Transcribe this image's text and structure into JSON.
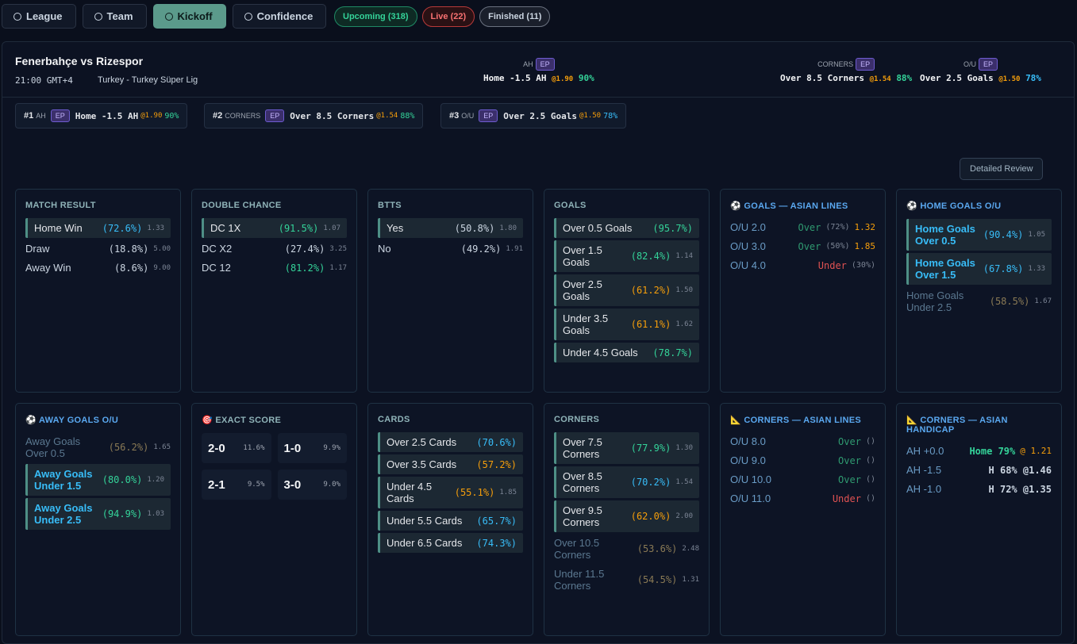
{
  "tabs": [
    {
      "label": "League",
      "active": false
    },
    {
      "label": "Team",
      "active": false
    },
    {
      "label": "Kickoff",
      "active": true
    },
    {
      "label": "Confidence",
      "active": false
    }
  ],
  "filters": [
    {
      "label": "Upcoming (318)",
      "tone": "green"
    },
    {
      "label": "Live (22)",
      "tone": "red"
    },
    {
      "label": "Finished (11)",
      "tone": "gray"
    }
  ],
  "match": {
    "title": "Fenerbahçe vs Rizespor",
    "time": "21:00 GMT+4",
    "league": "Turkey - Turkey Süper Lig"
  },
  "header_picks": [
    {
      "market": "AH",
      "badge": "EP",
      "pick": "Home -1.5 AH",
      "odds": "@1.90",
      "conf": "90%",
      "tone": "green"
    },
    {
      "market": "CORNERS",
      "badge": "EP",
      "pick": "Over 8.5 Corners",
      "odds": "@1.54",
      "conf": "88%",
      "tone": "green"
    },
    {
      "market": "O/U",
      "badge": "EP",
      "pick": "Over 2.5 Goals",
      "odds": "@1.50",
      "conf": "78%",
      "tone": "blue"
    }
  ],
  "top_picks": [
    {
      "rank": "#1",
      "market": "AH",
      "badge": "EP",
      "pick": "Home -1.5 AH",
      "odds": "@1.90",
      "conf": "90%",
      "tone": "green"
    },
    {
      "rank": "#2",
      "market": "CORNERS",
      "badge": "EP",
      "pick": "Over 8.5 Corners",
      "odds": "@1.54",
      "conf": "88%",
      "tone": "green"
    },
    {
      "rank": "#3",
      "market": "O/U",
      "badge": "EP",
      "pick": "Over 2.5 Goals",
      "odds": "@1.50",
      "conf": "78%",
      "tone": "blue"
    }
  ],
  "review_button": "Detailed Review",
  "cards": [
    {
      "title": "MATCH RESULT",
      "rows": [
        {
          "label": "Home Win",
          "pct": "(72.6%)",
          "odds": "1.33",
          "tone": "blue",
          "hl": true
        },
        {
          "label": "Draw",
          "pct": "(18.8%)",
          "odds": "5.00",
          "tone": "gray",
          "hl": false
        },
        {
          "label": "Away Win",
          "pct": "(8.6%)",
          "odds": "9.00",
          "tone": "gray",
          "hl": false
        }
      ]
    },
    {
      "title": "DOUBLE CHANCE",
      "rows": [
        {
          "label": "DC 1X",
          "pct": "(91.5%)",
          "odds": "1.07",
          "tone": "green",
          "hl": true
        },
        {
          "label": "DC X2",
          "pct": "(27.4%)",
          "odds": "3.25",
          "tone": "gray",
          "hl": false
        },
        {
          "label": "DC 12",
          "pct": "(81.2%)",
          "odds": "1.17",
          "tone": "green",
          "hl": false
        }
      ]
    },
    {
      "title": "BTTS",
      "rows": [
        {
          "label": "Yes",
          "pct": "(50.8%)",
          "odds": "1.80",
          "tone": "gray",
          "hl": true
        },
        {
          "label": "No",
          "pct": "(49.2%)",
          "odds": "1.91",
          "tone": "gray",
          "hl": false
        }
      ]
    },
    {
      "title": "GOALS",
      "rows": [
        {
          "label": "Over 0.5 Goals",
          "pct": "(95.7%)",
          "tone": "green",
          "hl": true
        },
        {
          "label": "Over 1.5 Goals",
          "pct": "(82.4%)",
          "odds": "1.14",
          "tone": "green",
          "hl": true
        },
        {
          "label": "Over 2.5 Goals",
          "pct": "(61.2%)",
          "odds": "1.50",
          "tone": "orange",
          "hl": true
        },
        {
          "label": "Under 3.5 Goals",
          "pct": "(61.1%)",
          "odds": "1.62",
          "tone": "orange",
          "hl": true
        },
        {
          "label": "Under 4.5 Goals",
          "pct": "(78.7%)",
          "tone": "green",
          "hl": true
        }
      ]
    },
    {
      "title": "GOALS — ASIAN LINES",
      "icon": "⚽",
      "accent": true,
      "rows": [
        {
          "label": "O/U 2.0",
          "pick": "Over",
          "pct": "(72%)",
          "odds": "1.32",
          "tone": "over"
        },
        {
          "label": "O/U 3.0",
          "pick": "Over",
          "pct": "(50%)",
          "odds": "1.85",
          "tone": "over"
        },
        {
          "label": "O/U 4.0",
          "pick": "Under",
          "pct": "(30%)",
          "tone": "under"
        }
      ]
    },
    {
      "title": "HOME GOALS O/U",
      "icon": "⚽",
      "accent": true,
      "rows": [
        {
          "label": "Home Goals Over 0.5",
          "pct": "(90.4%)",
          "odds": "1.05",
          "tone": "blue",
          "hl": true
        },
        {
          "label": "Home Goals Over 1.5",
          "pct": "(67.8%)",
          "odds": "1.33",
          "tone": "blue",
          "hl": true
        },
        {
          "label": "Home Goals Under 2.5",
          "pct": "(58.5%)",
          "odds": "1.67",
          "tone": "dim",
          "hl": false
        }
      ]
    },
    {
      "title": "AWAY GOALS O/U",
      "icon": "⚽",
      "accent": true,
      "rows": [
        {
          "label": "Away Goals Over 0.5",
          "pct": "(56.2%)",
          "odds": "1.65",
          "tone": "dim",
          "hl": false
        },
        {
          "label": "Away Goals Under 1.5",
          "pct": "(80.0%)",
          "odds": "1.20",
          "tone": "green",
          "hl": true
        },
        {
          "label": "Away Goals Under 2.5",
          "pct": "(94.9%)",
          "odds": "1.03",
          "tone": "green",
          "hl": true
        }
      ]
    },
    {
      "title": "EXACT SCORE",
      "icon": "🎯",
      "accent": false,
      "scores": [
        {
          "score": "2-0",
          "pct": "11.6%"
        },
        {
          "score": "1-0",
          "pct": "9.9%"
        },
        {
          "score": "2-1",
          "pct": "9.5%"
        },
        {
          "score": "3-0",
          "pct": "9.0%"
        }
      ]
    },
    {
      "title": "CARDS",
      "rows": [
        {
          "label": "Over 2.5 Cards",
          "pct": "(70.6%)",
          "tone": "blue",
          "hl": true
        },
        {
          "label": "Over 3.5 Cards",
          "pct": "(57.2%)",
          "tone": "orange",
          "hl": true
        },
        {
          "label": "Under 4.5 Cards",
          "pct": "(55.1%)",
          "odds": "1.85",
          "tone": "orange",
          "hl": true
        },
        {
          "label": "Under 5.5 Cards",
          "pct": "(65.7%)",
          "tone": "blue",
          "hl": true
        },
        {
          "label": "Under 6.5 Cards",
          "pct": "(74.3%)",
          "tone": "blue",
          "hl": true
        }
      ]
    },
    {
      "title": "CORNERS",
      "rows": [
        {
          "label": "Over 7.5 Corners",
          "pct": "(77.9%)",
          "odds": "1.30",
          "tone": "green",
          "hl": true
        },
        {
          "label": "Over 8.5 Corners",
          "pct": "(70.2%)",
          "odds": "1.54",
          "tone": "blue",
          "hl": true
        },
        {
          "label": "Over 9.5 Corners",
          "pct": "(62.0%)",
          "odds": "2.00",
          "tone": "orange",
          "hl": true
        },
        {
          "label": "Over 10.5 Corners",
          "pct": "(53.6%)",
          "odds": "2.48",
          "tone": "dim",
          "hl": false
        },
        {
          "label": "Under 11.5 Corners",
          "pct": "(54.5%)",
          "odds": "1.31",
          "tone": "dim",
          "hl": false
        }
      ]
    },
    {
      "title": "CORNERS — ASIAN LINES",
      "icon": "📐",
      "accent": true,
      "rows": [
        {
          "label": "O/U 8.0",
          "pick": "Over",
          "pct": "()",
          "tone": "over"
        },
        {
          "label": "O/U 9.0",
          "pick": "Over",
          "pct": "()",
          "tone": "over"
        },
        {
          "label": "O/U 10.0",
          "pick": "Over",
          "pct": "()",
          "tone": "over"
        },
        {
          "label": "O/U 11.0",
          "pick": "Under",
          "pct": "()",
          "tone": "under"
        }
      ]
    },
    {
      "title": "CORNERS — ASIAN HANDICAP",
      "icon": "📐",
      "accent": true,
      "rows": [
        {
          "label": "AH +0.0",
          "pick": "Home 79%",
          "odds": "@ 1.21",
          "tone": "ahmain"
        },
        {
          "label": "AH -1.5",
          "pick": "H 68% @1.46",
          "tone": "ah"
        },
        {
          "label": "AH -1.0",
          "pick": "H 72% @1.35",
          "tone": "ah"
        }
      ]
    }
  ]
}
